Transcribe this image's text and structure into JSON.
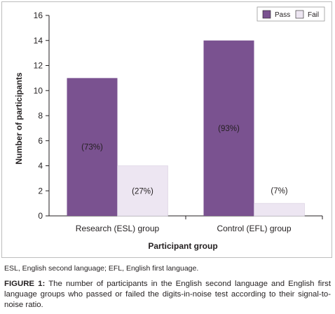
{
  "chart_data": {
    "type": "bar",
    "categories": [
      "Research (ESL) group",
      "Control (EFL) group"
    ],
    "series": [
      {
        "name": "Pass",
        "values": [
          11,
          14
        ],
        "labels": [
          "(73%)",
          "(93%)"
        ]
      },
      {
        "name": "Fail",
        "values": [
          4,
          1
        ],
        "labels": [
          "(27%)",
          "(7%)"
        ]
      }
    ],
    "xlabel": "Participant group",
    "ylabel": "Number of participants",
    "ylim": [
      0,
      16
    ],
    "yticks": [
      "0",
      "2",
      "4",
      "6",
      "8",
      "10",
      "12",
      "14",
      "16"
    ],
    "grid": false,
    "legend_position": "top-right"
  },
  "colors": {
    "pass": "#7a5290",
    "fail": "#ede6f2",
    "axis": "#231f20"
  },
  "footnote": "ESL, English second language; EFL, English first language.",
  "caption": {
    "label": "FIGURE 1:",
    "text": " The number of participants in the English second language and English first language groups who passed or failed the digits-in-noise test according to their signal-to-noise ratio."
  }
}
